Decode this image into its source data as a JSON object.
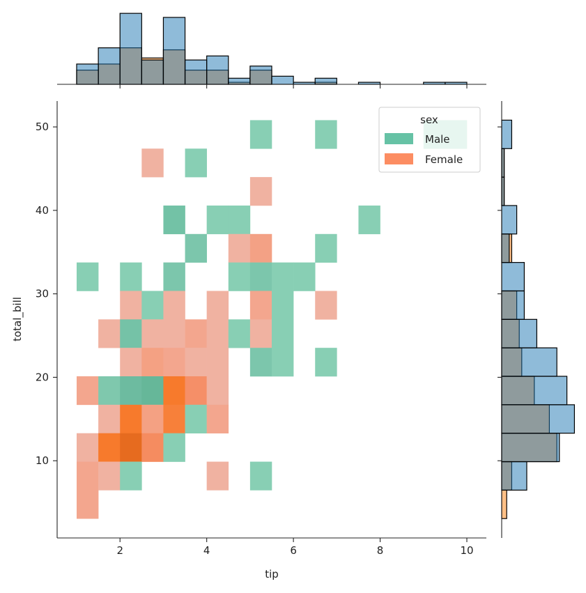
{
  "chart_data": {
    "type": "heatmap",
    "kind": "jointplot-hist",
    "xlabel": "tip",
    "ylabel": "total_bill",
    "xlim": [
      0.55,
      10.45
    ],
    "ylim": [
      0.75,
      53.1
    ],
    "xticks": [
      2,
      4,
      6,
      8,
      10
    ],
    "yticks": [
      10,
      20,
      30,
      40,
      50
    ],
    "grid": false,
    "bins": {
      "tip_start": 1.0,
      "tip_width": 0.5,
      "bill_start": 3.07,
      "bill_width": 3.41
    },
    "legend": {
      "title": "sex",
      "placement": "top-right",
      "entries": [
        {
          "label": "Male",
          "color": "#66c2a5"
        },
        {
          "label": "Female",
          "color": "#fc8d62"
        }
      ]
    },
    "cells": [
      [
        5.0,
        47.4,
        "Male",
        "#88cfb4"
      ],
      [
        6.5,
        47.4,
        "Male",
        "#88cfb4"
      ],
      [
        9.0,
        47.4,
        "Male",
        "#88cfb4"
      ],
      [
        9.5,
        47.4,
        "Male",
        "#88cfb4"
      ],
      [
        2.5,
        43.99,
        "Female",
        "#f0b2a1"
      ],
      [
        3.5,
        43.99,
        "Male",
        "#88cfb4"
      ],
      [
        5.0,
        40.58,
        "Female",
        "#f0b2a1"
      ],
      [
        3.0,
        37.17,
        "Male",
        "#73c2a6"
      ],
      [
        4.0,
        37.17,
        "Male",
        "#88cfb4"
      ],
      [
        4.5,
        37.17,
        "Male",
        "#88cfb4"
      ],
      [
        7.5,
        37.17,
        "Male",
        "#88cfb4"
      ],
      [
        3.5,
        33.76,
        "Male",
        "#7cc6ac"
      ],
      [
        4.5,
        33.76,
        "Female",
        "#f0b2a1"
      ],
      [
        5.0,
        33.76,
        "Female",
        "#f3a185"
      ],
      [
        6.5,
        33.76,
        "Male",
        "#88cfb4"
      ],
      [
        1.0,
        30.35,
        "Male",
        "#88cfb4"
      ],
      [
        2.0,
        30.35,
        "Male",
        "#88cfb4"
      ],
      [
        3.0,
        30.35,
        "Male",
        "#7cc6ac"
      ],
      [
        4.5,
        30.35,
        "Male",
        "#88cfb4"
      ],
      [
        5.0,
        30.35,
        "Male",
        "#7cc6ac"
      ],
      [
        5.5,
        30.35,
        "Male",
        "#88cfb4"
      ],
      [
        6.0,
        30.35,
        "Male",
        "#88cfb4"
      ],
      [
        2.0,
        26.94,
        "Female",
        "#f0b2a1"
      ],
      [
        2.5,
        26.94,
        "Male",
        "#88cfb4"
      ],
      [
        3.0,
        26.94,
        "Female",
        "#f0b2a1"
      ],
      [
        4.0,
        26.94,
        "Female",
        "#f0b2a1"
      ],
      [
        5.0,
        26.94,
        "Female",
        "#f3a68e"
      ],
      [
        5.5,
        26.94,
        "Male",
        "#88cfb4"
      ],
      [
        6.5,
        26.94,
        "Female",
        "#f0b2a1"
      ],
      [
        1.5,
        23.53,
        "Female",
        "#f0b2a1"
      ],
      [
        2.0,
        23.53,
        "Male",
        "#75c2a7"
      ],
      [
        2.5,
        23.53,
        "Female",
        "#f0b2a1"
      ],
      [
        3.0,
        23.53,
        "Female",
        "#f0b2a1"
      ],
      [
        3.5,
        23.53,
        "Female",
        "#f3a68e"
      ],
      [
        4.0,
        23.53,
        "Female",
        "#f0b2a1"
      ],
      [
        4.5,
        23.53,
        "Male",
        "#88cfb4"
      ],
      [
        5.0,
        23.53,
        "Female",
        "#f0b2a1"
      ],
      [
        5.5,
        23.53,
        "Male",
        "#88cfb4"
      ],
      [
        2.0,
        20.12,
        "Female",
        "#f0b2a1"
      ],
      [
        2.5,
        20.12,
        "Female",
        "#f4a183"
      ],
      [
        3.0,
        20.12,
        "Female",
        "#f3a68e"
      ],
      [
        3.5,
        20.12,
        "Female",
        "#f0b2a1"
      ],
      [
        4.0,
        20.12,
        "Female",
        "#f0b2a1"
      ],
      [
        5.0,
        20.12,
        "Male",
        "#7cc6ac"
      ],
      [
        5.5,
        20.12,
        "Male",
        "#88cfb4"
      ],
      [
        6.5,
        20.12,
        "Male",
        "#88cfb4"
      ],
      [
        1.0,
        16.71,
        "Female",
        "#f3a68e"
      ],
      [
        1.5,
        16.71,
        "Male",
        "#7fc8ad"
      ],
      [
        2.0,
        16.71,
        "Male",
        "#6dbba0"
      ],
      [
        2.5,
        16.71,
        "Male",
        "#66b799"
      ],
      [
        3.0,
        16.71,
        "Female",
        "#f77a2c"
      ],
      [
        3.5,
        16.71,
        "Female",
        "#f58f68"
      ],
      [
        4.0,
        16.71,
        "Female",
        "#f0b2a1"
      ],
      [
        1.5,
        13.3,
        "Female",
        "#f0b2a1"
      ],
      [
        2.0,
        13.3,
        "Female",
        "#f77a2c"
      ],
      [
        2.5,
        13.3,
        "Female",
        "#f4a183"
      ],
      [
        3.0,
        13.3,
        "Female",
        "#f7803a"
      ],
      [
        3.5,
        13.3,
        "Male",
        "#88cfb4"
      ],
      [
        4.0,
        13.3,
        "Female",
        "#f3a68e"
      ],
      [
        1.0,
        9.89,
        "Female",
        "#f0b2a1"
      ],
      [
        1.5,
        9.89,
        "Female",
        "#f77a2c"
      ],
      [
        2.0,
        9.89,
        "Female",
        "#e66b1f"
      ],
      [
        2.5,
        9.89,
        "Female",
        "#f58c60"
      ],
      [
        3.0,
        9.89,
        "Male",
        "#88cfb4"
      ],
      [
        1.0,
        6.48,
        "Female",
        "#f3a68e"
      ],
      [
        1.5,
        6.48,
        "Female",
        "#f0b2a1"
      ],
      [
        2.0,
        6.48,
        "Male",
        "#88cfb4"
      ],
      [
        4.0,
        6.48,
        "Female",
        "#f0b2a1"
      ],
      [
        5.0,
        6.48,
        "Male",
        "#88cfb4"
      ],
      [
        1.0,
        3.07,
        "Female",
        "#f3a68e"
      ]
    ],
    "marginal_x": {
      "bin_starts": [
        1.0,
        1.5,
        2.0,
        2.5,
        3.0,
        3.5,
        4.0,
        4.5,
        5.0,
        5.5,
        6.0,
        6.5,
        7.0,
        7.5,
        8.0,
        8.5,
        9.0,
        9.5
      ],
      "series": [
        {
          "name": "Female",
          "color": "#ff7f0e",
          "values": [
            7,
            10,
            18,
            13,
            17,
            7,
            7,
            1,
            7,
            0,
            0,
            1,
            0,
            0,
            0,
            0,
            0,
            0
          ]
        },
        {
          "name": "Male",
          "color": "#1f77b4",
          "values": [
            10,
            18,
            35,
            12,
            33,
            12,
            14,
            3,
            9,
            4,
            1,
            3,
            0,
            1,
            0,
            0,
            1,
            1
          ]
        }
      ]
    },
    "marginal_y": {
      "bin_starts": [
        3.07,
        6.48,
        9.89,
        13.3,
        16.71,
        20.12,
        23.53,
        26.94,
        30.35,
        33.76,
        37.17,
        40.58,
        43.99,
        47.4
      ],
      "series": [
        {
          "name": "Female",
          "color": "#ff7f0e",
          "values": [
            2,
            4,
            22,
            19,
            13,
            8,
            7,
            6,
            0,
            4,
            0,
            1,
            1,
            0
          ]
        },
        {
          "name": "Male",
          "color": "#1f77b4",
          "values": [
            0,
            10,
            23,
            29,
            26,
            22,
            14,
            9,
            9,
            3,
            6,
            1,
            1,
            4
          ]
        }
      ]
    }
  }
}
